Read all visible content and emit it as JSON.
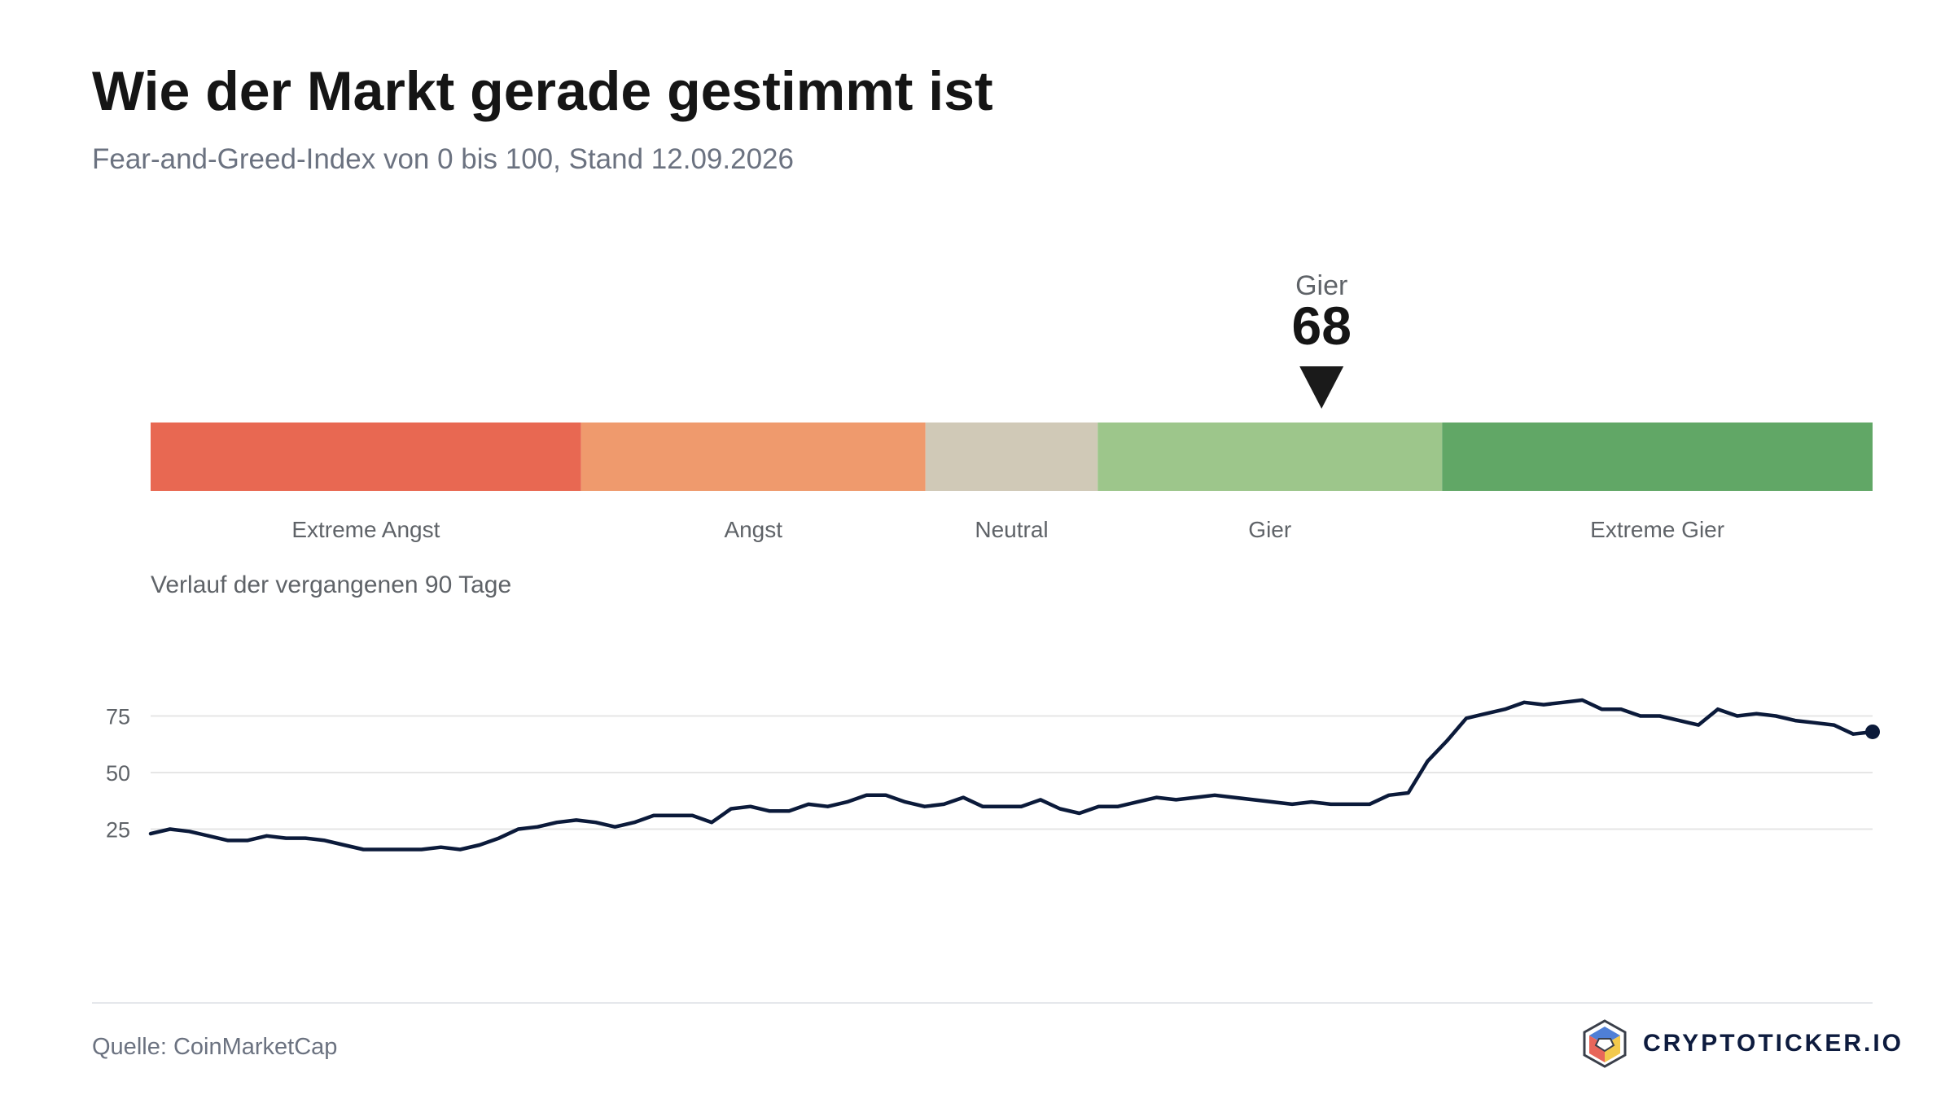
{
  "header": {
    "title": "Wie der Markt gerade gestimmt ist",
    "subtitle": "Fear-and-Greed-Index von 0 bis 100, Stand 12.09.2026"
  },
  "chart_data": [
    {
      "type": "gauge",
      "current_value": 68,
      "current_label": "Gier",
      "range": [
        0,
        100
      ],
      "bands": [
        {
          "label": "Extreme Angst",
          "from": 0,
          "to": 25,
          "color": "#e86852"
        },
        {
          "label": "Angst",
          "from": 25,
          "to": 45,
          "color": "#ef9a6d"
        },
        {
          "label": "Neutral",
          "from": 45,
          "to": 55,
          "color": "#d0c9b7"
        },
        {
          "label": "Gier",
          "from": 55,
          "to": 75,
          "color": "#9dc68b"
        },
        {
          "label": "Extreme Gier",
          "from": 75,
          "to": 100,
          "color": "#61a766"
        }
      ],
      "marker_color": "#1a1a1a"
    },
    {
      "type": "line",
      "title": "Verlauf der vergangenen 90 Tage",
      "ylim": [
        0,
        100
      ],
      "yticks": [
        25,
        50,
        75
      ],
      "grid": true,
      "line_color": "#0b1a3a",
      "values": [
        23,
        25,
        24,
        22,
        20,
        20,
        22,
        21,
        21,
        20,
        18,
        16,
        16,
        16,
        16,
        17,
        16,
        18,
        21,
        25,
        26,
        28,
        29,
        28,
        26,
        28,
        31,
        31,
        31,
        28,
        34,
        35,
        33,
        33,
        36,
        35,
        37,
        40,
        40,
        37,
        35,
        36,
        39,
        35,
        35,
        35,
        38,
        34,
        32,
        35,
        35,
        37,
        39,
        38,
        39,
        40,
        39,
        38,
        37,
        36,
        37,
        36,
        36,
        36,
        40,
        41,
        55,
        64,
        74,
        76,
        78,
        81,
        80,
        81,
        82,
        78,
        78,
        75,
        75,
        73,
        71,
        78,
        75,
        76,
        75,
        73,
        72,
        71,
        67,
        68
      ]
    }
  ],
  "footer": {
    "source": "Quelle: CoinMarketCap",
    "brand": "CRYPTOTICKER.IO"
  }
}
